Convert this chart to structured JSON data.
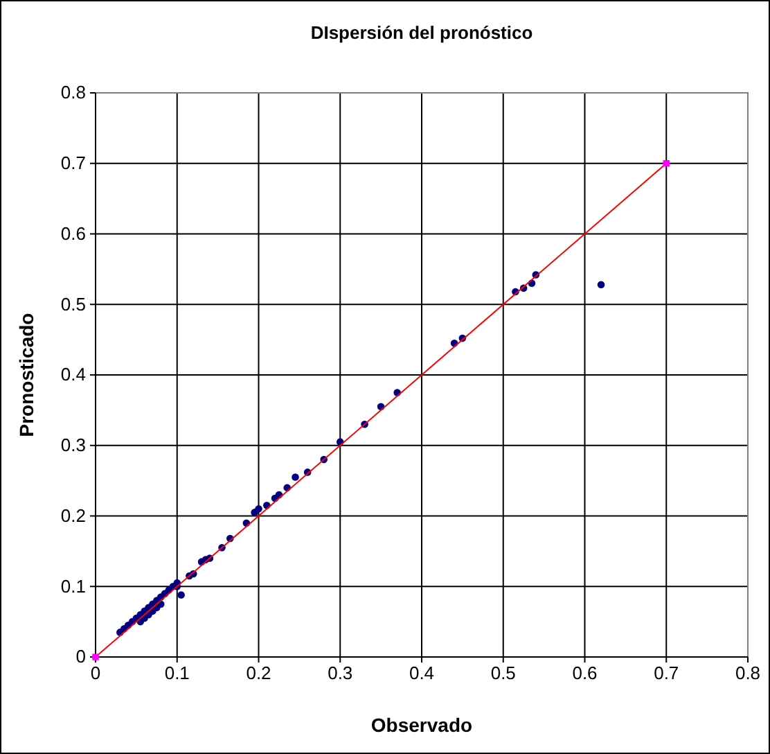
{
  "chart_data": {
    "type": "scatter",
    "title": "DIspersión del pronóstico",
    "xlabel": "Observado",
    "ylabel": "Pronosticado",
    "xlim": [
      0,
      0.8
    ],
    "xticks": [
      0,
      0.1,
      0.2,
      0.3,
      0.4,
      0.5,
      0.6,
      0.7,
      0.8
    ],
    "ylim": [
      0,
      0.8
    ],
    "yticks": [
      0,
      0.1,
      0.2,
      0.3,
      0.4,
      0.5,
      0.6,
      0.7,
      0.8
    ],
    "grid": true,
    "series": [
      {
        "marker": "circle",
        "color": "#000080",
        "x": [
          0.03,
          0.035,
          0.04,
          0.045,
          0.05,
          0.055,
          0.06,
          0.06,
          0.065,
          0.07,
          0.07,
          0.075,
          0.08,
          0.085,
          0.09,
          0.095,
          0.1,
          0.1,
          0.105,
          0.075,
          0.055,
          0.065,
          0.08,
          0.115,
          0.12,
          0.13,
          0.135,
          0.14,
          0.155,
          0.165,
          0.185,
          0.195,
          0.2,
          0.21,
          0.22,
          0.225,
          0.235,
          0.245,
          0.26,
          0.28,
          0.3,
          0.33,
          0.35,
          0.37,
          0.44,
          0.45,
          0.515,
          0.525,
          0.535,
          0.54,
          0.62
        ],
        "values": [
          0.035,
          0.04,
          0.045,
          0.05,
          0.055,
          0.06,
          0.065,
          0.055,
          0.07,
          0.075,
          0.065,
          0.08,
          0.085,
          0.09,
          0.095,
          0.1,
          0.105,
          0.1,
          0.088,
          0.07,
          0.05,
          0.06,
          0.075,
          0.115,
          0.118,
          0.135,
          0.138,
          0.14,
          0.155,
          0.168,
          0.19,
          0.205,
          0.21,
          0.215,
          0.225,
          0.23,
          0.24,
          0.255,
          0.262,
          0.28,
          0.305,
          0.33,
          0.355,
          0.375,
          0.445,
          0.452,
          0.518,
          0.523,
          0.53,
          0.542,
          0.528
        ]
      },
      {
        "type": "line",
        "marker": "none",
        "color": "#ff0000",
        "x": [
          0,
          0.7
        ],
        "values": [
          0,
          0.7
        ]
      },
      {
        "marker": "square",
        "color": "#ff00ff",
        "x": [
          0,
          0.7
        ],
        "values": [
          0,
          0.7
        ]
      }
    ]
  }
}
